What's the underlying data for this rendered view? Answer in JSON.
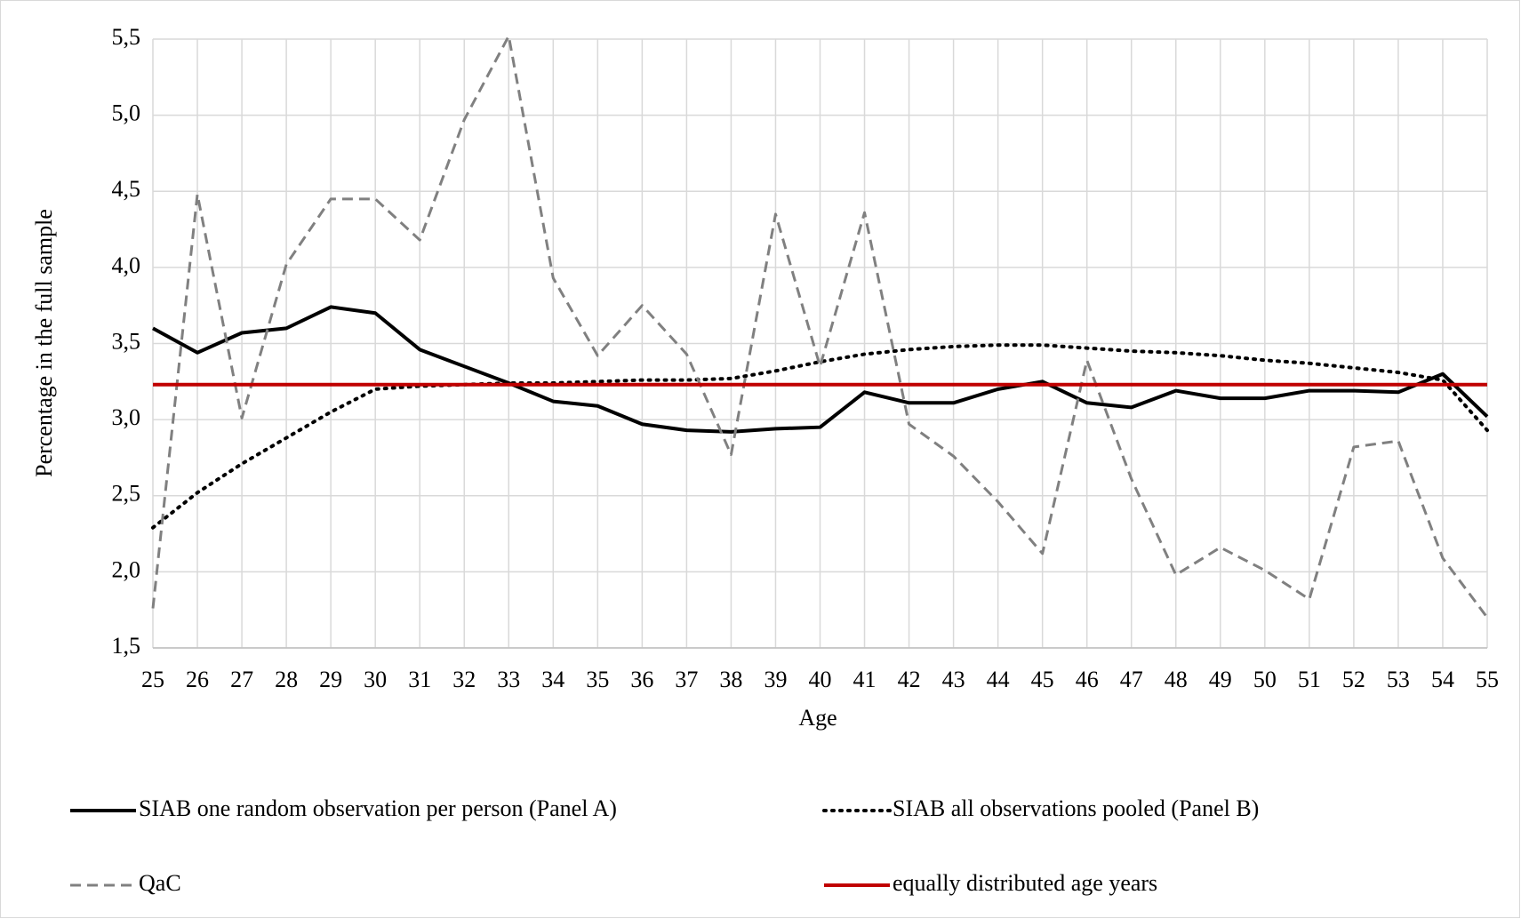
{
  "chart_data": {
    "type": "line",
    "x_label": "Age",
    "y_label": "Percentage in the full sample",
    "x": [
      25,
      26,
      27,
      28,
      29,
      30,
      31,
      32,
      33,
      34,
      35,
      36,
      37,
      38,
      39,
      40,
      41,
      42,
      43,
      44,
      45,
      46,
      47,
      48,
      49,
      50,
      51,
      52,
      53,
      54,
      55
    ],
    "xlim": [
      25,
      55
    ],
    "xticks": [
      25,
      26,
      27,
      28,
      29,
      30,
      31,
      32,
      33,
      34,
      35,
      36,
      37,
      38,
      39,
      40,
      41,
      42,
      43,
      44,
      45,
      46,
      47,
      48,
      49,
      50,
      51,
      52,
      53,
      54,
      55
    ],
    "ylim": [
      1.5,
      5.5
    ],
    "yticks": [
      {
        "value": 1.5,
        "label": "1,5"
      },
      {
        "value": 2.0,
        "label": "2,0"
      },
      {
        "value": 2.5,
        "label": "2,5"
      },
      {
        "value": 3.0,
        "label": "3,0"
      },
      {
        "value": 3.5,
        "label": "3,5"
      },
      {
        "value": 4.0,
        "label": "4,0"
      },
      {
        "value": 4.5,
        "label": "4,5"
      },
      {
        "value": 5.0,
        "label": "5,0"
      },
      {
        "value": 5.5,
        "label": "5,5"
      }
    ],
    "grid": true,
    "legend": "bottom",
    "series": [
      {
        "name": "SIAB one random observation per person (Panel A)",
        "color": "#000000",
        "style": "solid",
        "values": [
          3.6,
          3.44,
          3.57,
          3.6,
          3.74,
          3.7,
          3.46,
          3.35,
          3.24,
          3.12,
          3.09,
          2.97,
          2.93,
          2.92,
          2.94,
          2.95,
          3.18,
          3.11,
          3.11,
          3.2,
          3.25,
          3.11,
          3.08,
          3.19,
          3.14,
          3.14,
          3.19,
          3.19,
          3.18,
          3.3,
          3.02
        ]
      },
      {
        "name": "SIAB all observations pooled (Panel B)",
        "color": "#000000",
        "style": "dotted",
        "values": [
          2.29,
          2.52,
          2.71,
          2.88,
          3.05,
          3.2,
          3.22,
          3.23,
          3.24,
          3.24,
          3.25,
          3.26,
          3.26,
          3.27,
          3.32,
          3.38,
          3.43,
          3.46,
          3.48,
          3.49,
          3.49,
          3.47,
          3.45,
          3.44,
          3.42,
          3.39,
          3.37,
          3.34,
          3.31,
          3.26,
          2.93
        ]
      },
      {
        "name": "QaC",
        "color": "#808080",
        "style": "dashed",
        "values": [
          1.76,
          4.48,
          3.01,
          4.02,
          4.45,
          4.45,
          4.18,
          4.97,
          5.52,
          3.93,
          3.42,
          3.75,
          3.43,
          2.77,
          4.35,
          3.35,
          4.36,
          2.97,
          2.76,
          2.46,
          2.12,
          3.39,
          2.61,
          1.98,
          2.16,
          2.01,
          1.82,
          2.82,
          2.86,
          2.09,
          1.7
        ]
      },
      {
        "name": "equally distributed age years",
        "color": "#c00000",
        "style": "solid",
        "values": [
          3.23,
          3.23,
          3.23,
          3.23,
          3.23,
          3.23,
          3.23,
          3.23,
          3.23,
          3.23,
          3.23,
          3.23,
          3.23,
          3.23,
          3.23,
          3.23,
          3.23,
          3.23,
          3.23,
          3.23,
          3.23,
          3.23,
          3.23,
          3.23,
          3.23,
          3.23,
          3.23,
          3.23,
          3.23,
          3.23,
          3.23
        ]
      }
    ]
  }
}
